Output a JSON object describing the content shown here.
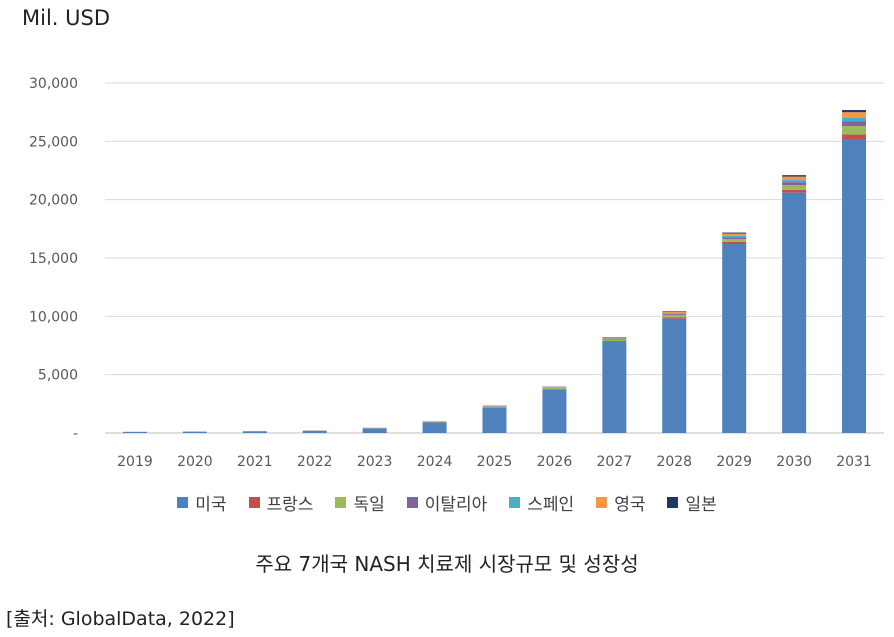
{
  "chart_data": {
    "type": "bar",
    "stacked": true,
    "unit_label": "Mil. USD",
    "categories": [
      "2019",
      "2020",
      "2021",
      "2022",
      "2023",
      "2024",
      "2025",
      "2026",
      "2027",
      "2028",
      "2029",
      "2030",
      "2031"
    ],
    "y_ticks": [
      "-",
      "5,000",
      "10,000",
      "15,000",
      "20,000",
      "25,000",
      "30,000"
    ],
    "ylim": [
      0,
      30000
    ],
    "grid": true,
    "legend_position": "bottom",
    "series": [
      {
        "name": "미국",
        "color": "#4F81BD",
        "values": [
          90,
          110,
          130,
          180,
          380,
          900,
          2150,
          3700,
          7800,
          9800,
          16200,
          20600,
          25200
        ]
      },
      {
        "name": "프랑스",
        "color": "#C0504D",
        "values": [
          3,
          4,
          5,
          8,
          15,
          25,
          40,
          60,
          80,
          120,
          180,
          250,
          400
        ]
      },
      {
        "name": "독일",
        "color": "#9BBB59",
        "values": [
          5,
          6,
          8,
          10,
          20,
          30,
          60,
          80,
          120,
          170,
          250,
          400,
          700
        ]
      },
      {
        "name": "이탈리아",
        "color": "#8064A2",
        "values": [
          3,
          4,
          5,
          6,
          10,
          15,
          30,
          40,
          60,
          100,
          150,
          250,
          400
        ]
      },
      {
        "name": "스페인",
        "color": "#4BACC6",
        "values": [
          2,
          3,
          4,
          5,
          8,
          12,
          25,
          30,
          50,
          80,
          120,
          180,
          300
        ]
      },
      {
        "name": "영국",
        "color": "#F79646",
        "values": [
          4,
          5,
          6,
          8,
          15,
          20,
          40,
          50,
          80,
          120,
          200,
          300,
          500
        ]
      },
      {
        "name": "일본",
        "color": "#1F3864",
        "values": [
          2,
          2,
          3,
          4,
          5,
          8,
          15,
          20,
          30,
          50,
          80,
          120,
          180
        ]
      }
    ]
  },
  "caption": "주요 7개국 NASH 치료제 시장규모 및 성장성",
  "source": "[출처: GlobalData, 2022]"
}
